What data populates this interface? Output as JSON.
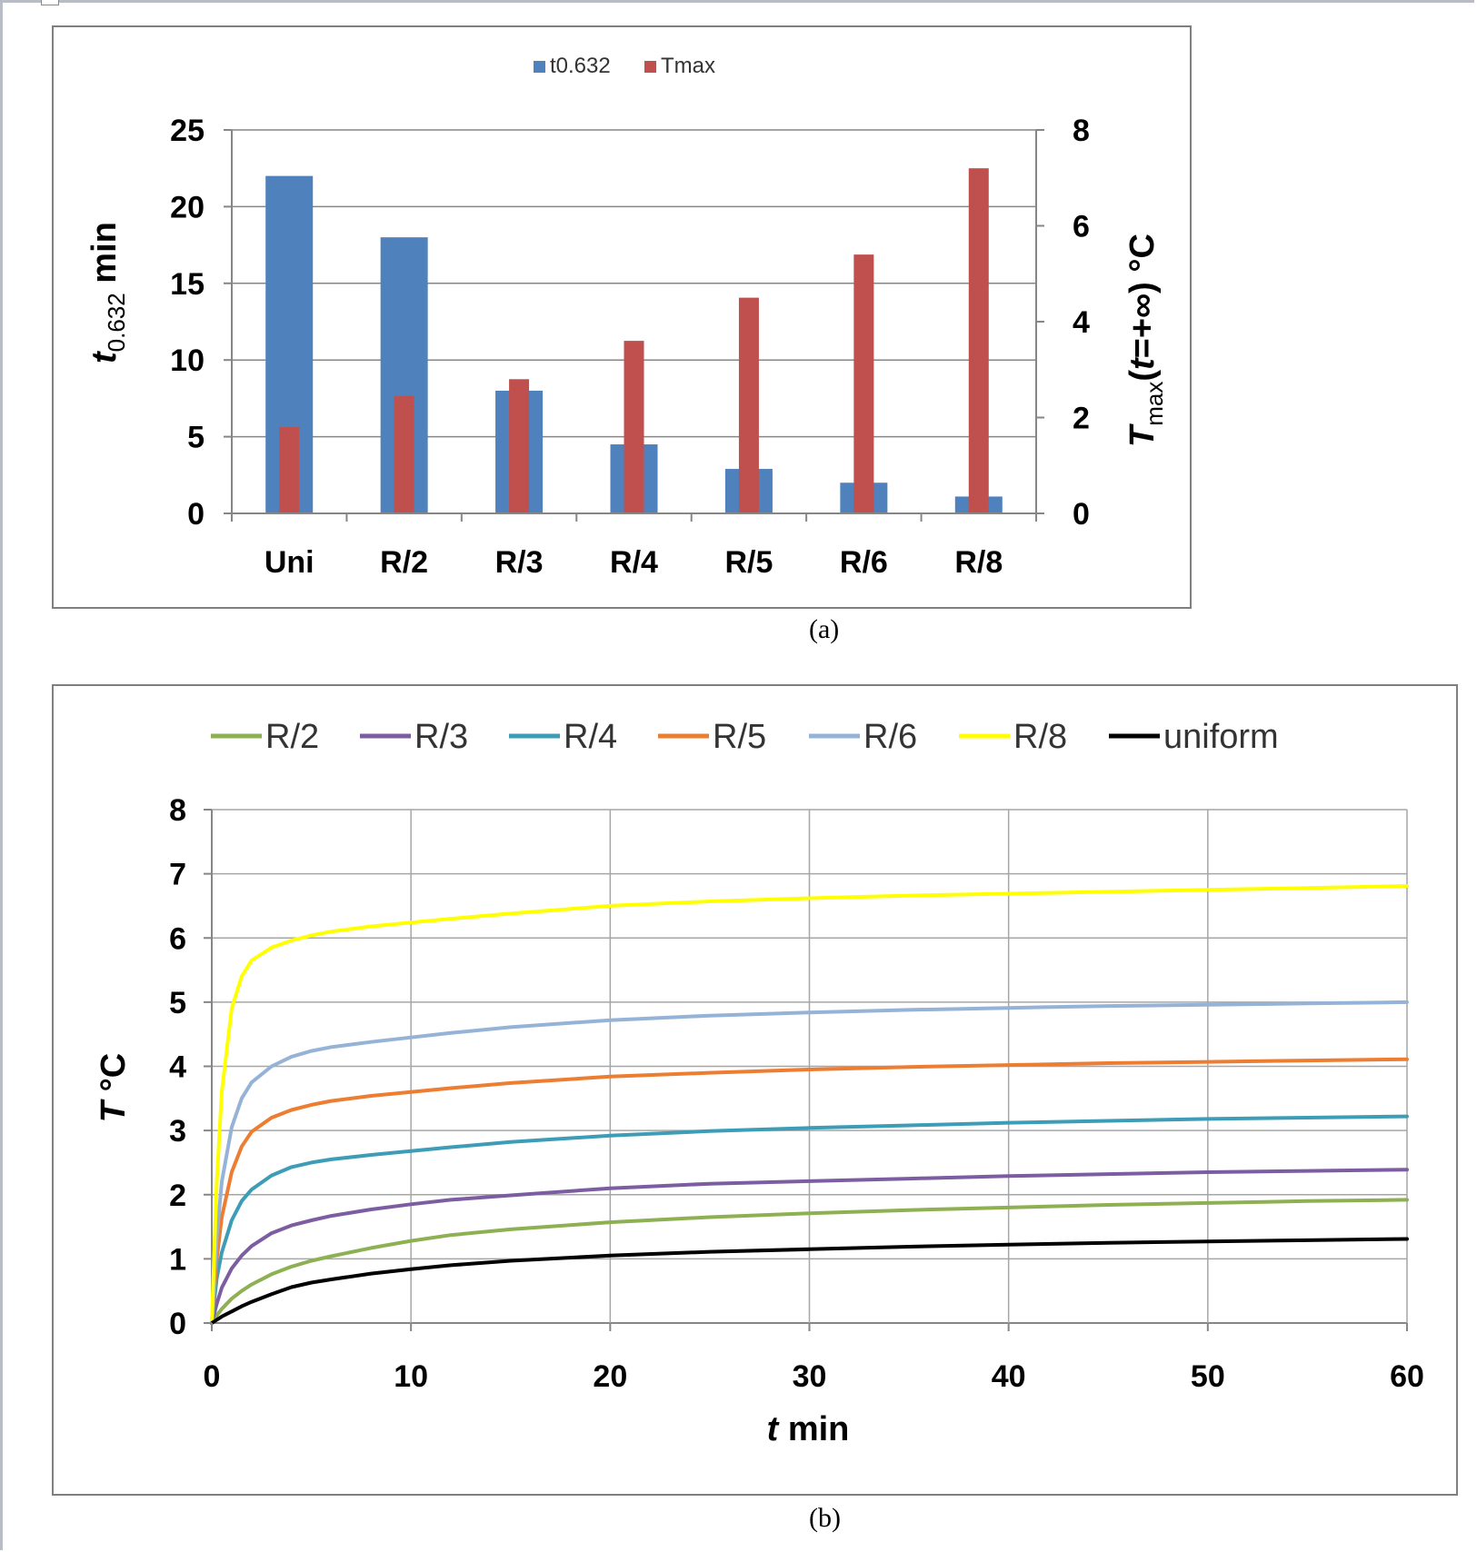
{
  "captions": {
    "a": "(a)",
    "b": "(b)"
  },
  "colors": {
    "t0632": "#4f81bd",
    "tmax": "#c0504d",
    "R/2": "#8db052",
    "R/3": "#7d5da2",
    "R/4": "#3d9cb6",
    "R/5": "#ec7d31",
    "R/6": "#95b3d7",
    "R/8": "#ffff00",
    "uniform": "#000000"
  },
  "chart_data": [
    {
      "type": "bar",
      "categories": [
        "Uni",
        "R/2",
        "R/3",
        "R/4",
        "R/5",
        "R/6",
        "R/8"
      ],
      "series": [
        {
          "name": "t0.632",
          "axis": "left",
          "values": [
            22,
            18,
            8,
            4.5,
            2.9,
            2.0,
            1.1
          ]
        },
        {
          "name": "Tmax",
          "axis": "right",
          "values": [
            1.8,
            2.45,
            2.8,
            3.6,
            4.5,
            5.4,
            7.2
          ]
        }
      ],
      "legend": [
        "t0.632",
        "Tmax"
      ],
      "ylim_left": [
        0,
        25
      ],
      "yticks_left": [
        "0",
        "5",
        "10",
        "15",
        "20",
        "25"
      ],
      "ylim_right": [
        0,
        8
      ],
      "yticks_right": [
        "0",
        "2",
        "4",
        "6",
        "8"
      ],
      "ylabel_left": {
        "main": "t",
        "sub": "0.632",
        "rest": " min"
      },
      "ylabel_right": {
        "main": "T",
        "sub": "max",
        "paren_open": "(",
        "var": "t",
        "rest": "=+∞)  °C"
      },
      "grid": true
    },
    {
      "type": "line",
      "xlim": [
        0,
        60
      ],
      "xticks": [
        "0",
        "10",
        "20",
        "30",
        "40",
        "50",
        "60"
      ],
      "ylim": [
        0,
        8
      ],
      "yticks": [
        "0",
        "1",
        "2",
        "3",
        "4",
        "5",
        "6",
        "7",
        "8"
      ],
      "xlabel": {
        "var": "t",
        "rest": " min"
      },
      "ylabel": {
        "var": "T",
        "rest": " °C"
      },
      "grid": true,
      "x": [
        0,
        0.25,
        0.5,
        1,
        1.5,
        2,
        3,
        4,
        5,
        6,
        8,
        10,
        12,
        15,
        20,
        25,
        30,
        35,
        40,
        45,
        50,
        55,
        60
      ],
      "series": [
        {
          "name": "R/2",
          "values": [
            0,
            0.12,
            0.22,
            0.38,
            0.5,
            0.6,
            0.76,
            0.88,
            0.97,
            1.04,
            1.17,
            1.28,
            1.37,
            1.46,
            1.57,
            1.65,
            1.71,
            1.76,
            1.8,
            1.84,
            1.87,
            1.9,
            1.92
          ]
        },
        {
          "name": "R/3",
          "values": [
            0,
            0.3,
            0.55,
            0.85,
            1.05,
            1.2,
            1.4,
            1.52,
            1.6,
            1.67,
            1.77,
            1.85,
            1.92,
            1.99,
            2.1,
            2.17,
            2.21,
            2.25,
            2.29,
            2.32,
            2.35,
            2.37,
            2.39
          ]
        },
        {
          "name": "R/4",
          "values": [
            0,
            0.7,
            1.1,
            1.6,
            1.9,
            2.08,
            2.3,
            2.43,
            2.5,
            2.55,
            2.62,
            2.68,
            2.74,
            2.82,
            2.92,
            2.99,
            3.04,
            3.08,
            3.12,
            3.15,
            3.18,
            3.2,
            3.22
          ]
        },
        {
          "name": "R/5",
          "values": [
            0,
            1.0,
            1.65,
            2.35,
            2.75,
            2.98,
            3.2,
            3.32,
            3.4,
            3.46,
            3.54,
            3.6,
            3.66,
            3.74,
            3.84,
            3.9,
            3.95,
            3.99,
            4.02,
            4.05,
            4.07,
            4.09,
            4.11
          ]
        },
        {
          "name": "R/6",
          "values": [
            0,
            1.35,
            2.2,
            3.05,
            3.5,
            3.75,
            4.0,
            4.15,
            4.24,
            4.3,
            4.38,
            4.45,
            4.52,
            4.61,
            4.72,
            4.79,
            4.84,
            4.88,
            4.91,
            4.94,
            4.96,
            4.98,
            5.0
          ]
        },
        {
          "name": "R/8",
          "values": [
            0,
            2.2,
            3.6,
            4.9,
            5.4,
            5.65,
            5.85,
            5.96,
            6.04,
            6.1,
            6.18,
            6.24,
            6.3,
            6.38,
            6.5,
            6.57,
            6.62,
            6.66,
            6.69,
            6.72,
            6.75,
            6.78,
            6.81
          ]
        },
        {
          "name": "uniform",
          "values": [
            0,
            0.05,
            0.1,
            0.18,
            0.26,
            0.33,
            0.45,
            0.56,
            0.63,
            0.68,
            0.77,
            0.84,
            0.9,
            0.97,
            1.05,
            1.11,
            1.15,
            1.19,
            1.22,
            1.25,
            1.27,
            1.29,
            1.31
          ]
        }
      ],
      "legend": [
        "R/2",
        "R/3",
        "R/4",
        "R/5",
        "R/6",
        "R/8",
        "uniform"
      ]
    }
  ]
}
